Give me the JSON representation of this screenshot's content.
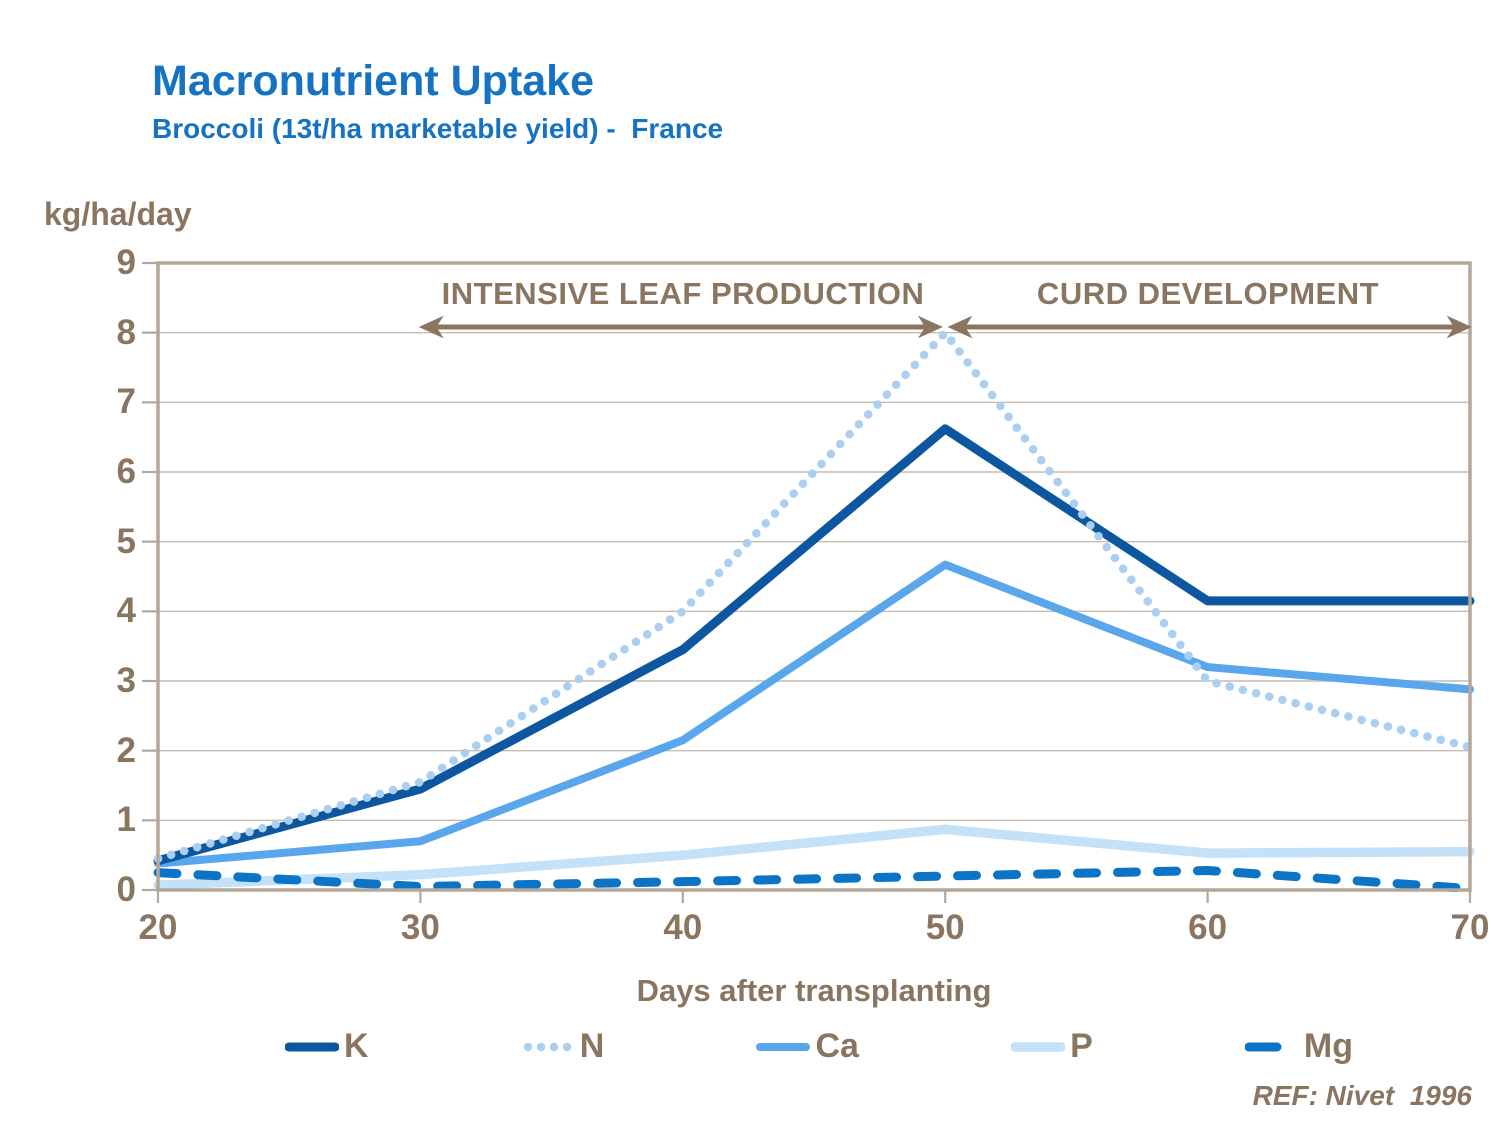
{
  "header": {
    "title": "Macronutrient Uptake",
    "subtitle": "Broccoli (13t/ha marketable yield) -  France"
  },
  "colors": {
    "title_blue": "#1673C1",
    "text_brown": "#8A7560",
    "plot_border": "#B3A79A",
    "gridline": "#C6BCAF",
    "arrow": "#8A7560",
    "k_line": "#0D57A1",
    "n_line": "#AACFF1",
    "ca_line": "#5AA6EC",
    "p_line": "#C5E1F8",
    "mg_line": "#0C74C6"
  },
  "chart_data": {
    "type": "line",
    "title": "Macronutrient Uptake",
    "subtitle": "Broccoli (13t/ha marketable yield) - France",
    "xlabel": "Days after transplanting",
    "y_unit_label": "kg/ha/day",
    "xlim": [
      20,
      70
    ],
    "ylim": [
      0,
      9
    ],
    "x_ticks": [
      20,
      30,
      40,
      50,
      60,
      70
    ],
    "y_ticks": [
      0,
      1,
      2,
      3,
      4,
      5,
      6,
      7,
      8,
      9
    ],
    "grid": "horizontal",
    "legend_position": "bottom",
    "x": [
      20,
      30,
      40,
      50,
      60,
      70
    ],
    "series": [
      {
        "name": "K",
        "values": [
          0.42,
          1.45,
          3.45,
          6.62,
          4.15,
          4.15
        ],
        "color": "#0D57A1",
        "style": "solid",
        "width": 9
      },
      {
        "name": "N",
        "values": [
          0.45,
          1.55,
          4.0,
          8.0,
          3.0,
          2.05
        ],
        "color": "#AACFF1",
        "style": "dotted",
        "width": 8.5
      },
      {
        "name": "Ca",
        "values": [
          0.38,
          0.7,
          2.15,
          4.67,
          3.2,
          2.88
        ],
        "color": "#5AA6EC",
        "style": "solid",
        "width": 8
      },
      {
        "name": "P",
        "values": [
          0.07,
          0.22,
          0.5,
          0.87,
          0.53,
          0.55
        ],
        "color": "#C5E1F8",
        "style": "solid",
        "width": 9.5
      },
      {
        "name": "Mg",
        "values": [
          0.25,
          0.05,
          0.12,
          0.2,
          0.28,
          0.02
        ],
        "color": "#0C74C6",
        "style": "dashed",
        "width": 9
      }
    ],
    "draw_order": [
      "P",
      "Mg",
      "Ca",
      "K",
      "N"
    ],
    "phases": [
      {
        "label": "INTENSIVE LEAF PRODUCTION",
        "from": 30,
        "to": 50
      },
      {
        "label": "CURD DEVELOPMENT",
        "from": 50,
        "to": 70
      }
    ],
    "reference": "REF: Nivet  1996"
  }
}
